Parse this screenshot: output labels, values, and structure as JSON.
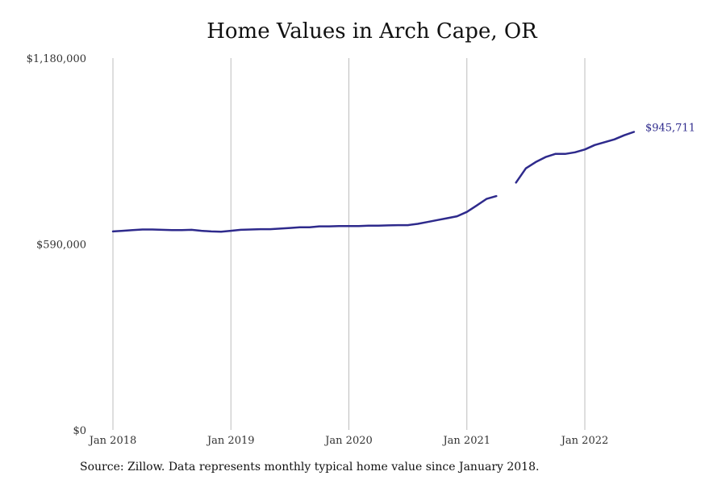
{
  "title": "Home Values in Arch Cape, OR",
  "source": "Source: Zillow. Data represents monthly typical home value since January 2018.",
  "colors": {
    "line": "#2e2a8c",
    "grid": "#bdbdbd"
  },
  "chart_data": {
    "type": "line",
    "title": "Home Values in Arch Cape, OR",
    "xlabel": "",
    "ylabel": "",
    "ylim": [
      0,
      1180000
    ],
    "y_ticks": [
      {
        "value": 0,
        "label": "$0"
      },
      {
        "value": 590000,
        "label": "$590,000"
      },
      {
        "value": 1180000,
        "label": "$1,180,000"
      }
    ],
    "x_ticks": [
      {
        "value": "2018-01",
        "label": "Jan 2018"
      },
      {
        "value": "2019-01",
        "label": "Jan 2019"
      },
      {
        "value": "2020-01",
        "label": "Jan 2020"
      },
      {
        "value": "2021-01",
        "label": "Jan 2021"
      },
      {
        "value": "2022-01",
        "label": "Jan 2022"
      }
    ],
    "grid": "vertical",
    "end_label": "$945,711",
    "series": [
      {
        "points": [
          [
            "2018-01",
            630000
          ],
          [
            "2018-02",
            632000
          ],
          [
            "2018-03",
            634000
          ],
          [
            "2018-04",
            636000
          ],
          [
            "2018-05",
            636000
          ],
          [
            "2018-06",
            635000
          ],
          [
            "2018-07",
            634000
          ],
          [
            "2018-08",
            634000
          ],
          [
            "2018-09",
            635000
          ],
          [
            "2018-10",
            632000
          ],
          [
            "2018-11",
            630000
          ],
          [
            "2018-12",
            629000
          ],
          [
            "2019-01",
            632000
          ],
          [
            "2019-02",
            635000
          ],
          [
            "2019-03",
            636000
          ],
          [
            "2019-04",
            637000
          ],
          [
            "2019-05",
            637000
          ],
          [
            "2019-06",
            639000
          ],
          [
            "2019-07",
            641000
          ],
          [
            "2019-08",
            643000
          ],
          [
            "2019-09",
            643000
          ],
          [
            "2019-10",
            646000
          ],
          [
            "2019-11",
            646000
          ],
          [
            "2019-12",
            647000
          ],
          [
            "2020-01",
            647000
          ],
          [
            "2020-02",
            647000
          ],
          [
            "2020-03",
            648000
          ],
          [
            "2020-04",
            648000
          ],
          [
            "2020-05",
            649000
          ],
          [
            "2020-06",
            650000
          ],
          [
            "2020-07",
            650000
          ],
          [
            "2020-08",
            654000
          ],
          [
            "2020-09",
            660000
          ],
          [
            "2020-10",
            666000
          ],
          [
            "2020-11",
            672000
          ],
          [
            "2020-12",
            678000
          ],
          [
            "2021-01",
            692000
          ],
          [
            "2021-02",
            712000
          ],
          [
            "2021-03",
            733000
          ],
          [
            "2021-04",
            742000
          ],
          null,
          [
            "2021-06",
            785000
          ],
          [
            "2021-07",
            830000
          ],
          [
            "2021-08",
            850000
          ],
          [
            "2021-09",
            866000
          ],
          [
            "2021-10",
            876000
          ],
          [
            "2021-11",
            876000
          ],
          [
            "2021-12",
            881000
          ],
          [
            "2022-01",
            890000
          ],
          [
            "2022-02",
            904000
          ],
          [
            "2022-03",
            913000
          ],
          [
            "2022-04",
            922000
          ],
          [
            "2022-05",
            935000
          ],
          [
            "2022-06",
            945711
          ]
        ]
      }
    ]
  }
}
